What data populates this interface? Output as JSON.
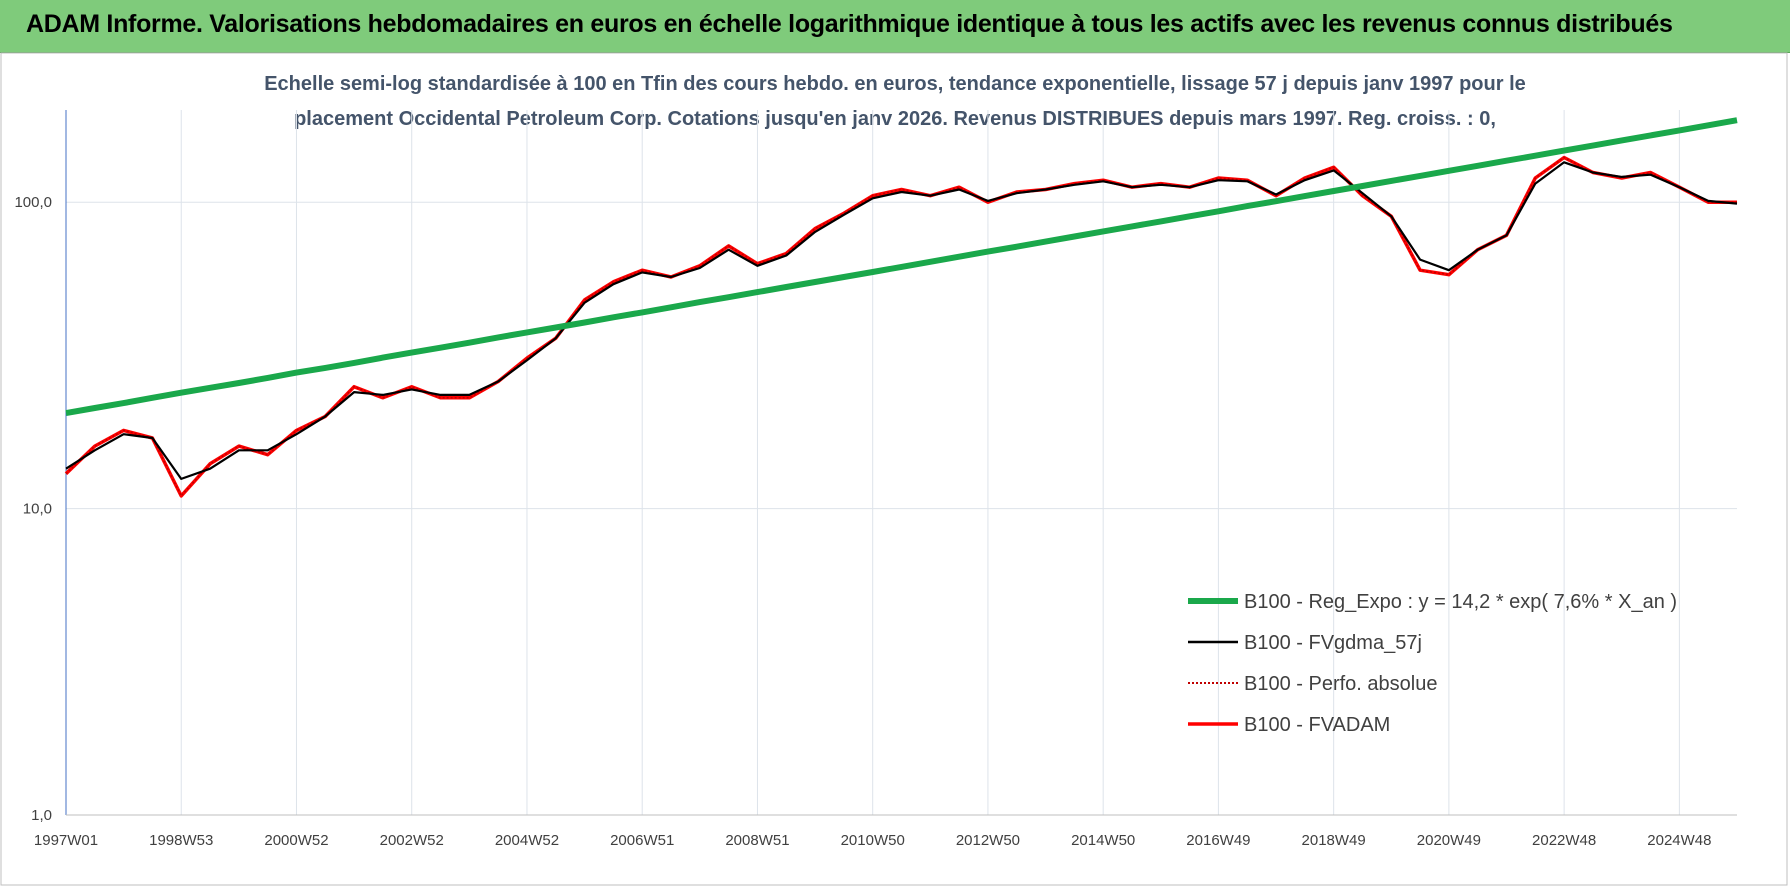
{
  "header": {
    "title": "ADAM Informe. Valorisations hebdomadaires en euros en échelle logarithmique identique à tous les actifs avec les revenus connus distribués"
  },
  "chart_data": {
    "type": "line",
    "title": [
      "Echelle semi-log standardisée à 100 en Tfin des cours hebdo. en euros, tendance exponentielle, lissage 57 j depuis janv 1997 pour le",
      "placement Occidental Petroleum Corp. Cotations jusqu'en janv 2026.  Revenus DISTRIBUES depuis mars 1997. Reg. croiss. : 0,"
    ],
    "categories": [
      "1997W01",
      null,
      null,
      null,
      "1998W53",
      null,
      null,
      null,
      "2000W52",
      null,
      null,
      null,
      "2002W52",
      null,
      null,
      null,
      "2004W52",
      null,
      null,
      null,
      "2006W51",
      null,
      null,
      null,
      "2008W51",
      null,
      null,
      null,
      "2010W50",
      null,
      null,
      null,
      "2012W50",
      null,
      null,
      null,
      "2014W50",
      null,
      null,
      null,
      "2016W49",
      null,
      null,
      null,
      "2018W49",
      null,
      null,
      null,
      "2020W49",
      null,
      null,
      null,
      "2022W48",
      null,
      null,
      null,
      "2024W48",
      null,
      null
    ],
    "log_scale": true,
    "grid": true,
    "ylim": [
      1,
      200
    ],
    "yticks": [
      {
        "value": 1,
        "label": "1,0"
      },
      {
        "value": 10,
        "label": "10,0"
      },
      {
        "value": 100,
        "label": "100,0"
      }
    ],
    "series": [
      {
        "name": "B100 - Reg_Expo : y = 14,2 * exp( 7,6% *  X_an )",
        "color": "#1aa84b",
        "values": [
          20.5,
          21.3,
          22.1,
          23.0,
          23.9,
          24.8,
          25.7,
          26.7,
          27.8,
          28.8,
          29.9,
          31.1,
          32.3,
          33.5,
          34.8,
          36.2,
          37.6,
          39.0,
          40.5,
          42.1,
          43.7,
          45.4,
          47.2,
          49.0,
          50.9,
          52.9,
          54.9,
          57.0,
          59.2,
          61.5,
          63.9,
          66.4,
          69.0,
          71.6,
          74.4,
          77.3,
          80.3,
          83.4,
          86.6,
          90.0,
          93.4,
          97.1,
          100.8,
          104.7,
          108.8,
          113.0,
          117.4,
          121.9,
          126.6,
          131.5,
          136.6,
          141.9,
          147.4,
          153.1,
          159.1,
          165.2,
          171.6,
          178.3,
          185.2
        ]
      },
      {
        "name": "B100 - FVgdma_57j",
        "color": "#000000",
        "values": [
          13.5,
          15.5,
          17.5,
          17,
          12.5,
          13.5,
          15.5,
          15.5,
          17.5,
          20,
          24,
          23.5,
          24.5,
          23.5,
          23.5,
          26,
          30.5,
          36,
          47,
          54,
          59,
          57,
          61,
          70,
          62,
          67,
          80,
          91,
          103,
          108,
          105,
          110,
          101,
          107,
          110,
          114,
          117,
          112,
          114,
          112,
          118,
          117,
          106,
          118,
          127,
          107,
          90,
          65,
          60,
          70,
          78,
          115,
          135,
          125,
          121,
          123,
          112,
          101,
          99
        ]
      },
      {
        "name": "B100 - Perfo. absolue",
        "color": "#c00000",
        "dotted": true,
        "values": [
          13,
          16,
          18,
          17,
          11,
          14,
          16,
          15,
          18,
          20,
          25,
          23,
          25,
          23,
          23,
          26,
          31,
          36,
          48,
          55,
          60,
          57,
          62,
          72,
          63,
          68,
          82,
          92,
          105,
          110,
          105,
          112,
          100,
          108,
          110,
          115,
          118,
          112,
          115,
          112,
          120,
          118,
          105,
          120,
          130,
          105,
          90,
          60,
          58,
          70,
          78,
          120,
          140,
          125,
          120,
          125,
          112,
          100,
          100
        ]
      },
      {
        "name": "B100 - FVADAM",
        "color": "#ff0000",
        "values": [
          13,
          16,
          18,
          17,
          11,
          14,
          16,
          15,
          18,
          20,
          25,
          23,
          25,
          23,
          23,
          26,
          31,
          36,
          48,
          55,
          60,
          57,
          62,
          72,
          63,
          68,
          82,
          92,
          105,
          110,
          105,
          112,
          100,
          108,
          110,
          115,
          118,
          112,
          115,
          112,
          120,
          118,
          105,
          120,
          130,
          105,
          90,
          60,
          58,
          70,
          78,
          120,
          140,
          125,
          120,
          125,
          112,
          100,
          100
        ]
      }
    ]
  }
}
